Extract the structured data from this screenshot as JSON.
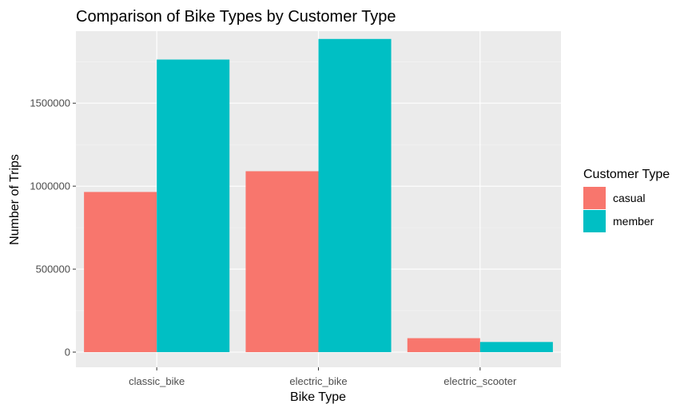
{
  "chart_data": {
    "type": "bar",
    "title": "Comparison of Bike Types by Customer Type",
    "xlabel": "Bike Type",
    "ylabel": "Number of Trips",
    "categories": [
      "classic_bike",
      "electric_bike",
      "electric_scooter"
    ],
    "series": [
      {
        "name": "casual",
        "color": "#f8766d",
        "values": [
          965000,
          1090000,
          84000
        ]
      },
      {
        "name": "member",
        "color": "#00bfc4",
        "values": [
          1763000,
          1887000,
          61000
        ]
      }
    ],
    "ylim": [
      0,
      1950000
    ],
    "yticks": [
      0,
      500000,
      1000000,
      1500000
    ],
    "ytick_labels": [
      "0",
      "500000",
      "1000000",
      "1500000"
    ],
    "grid": true,
    "legend": {
      "title": "Customer Type",
      "position": "right"
    }
  }
}
